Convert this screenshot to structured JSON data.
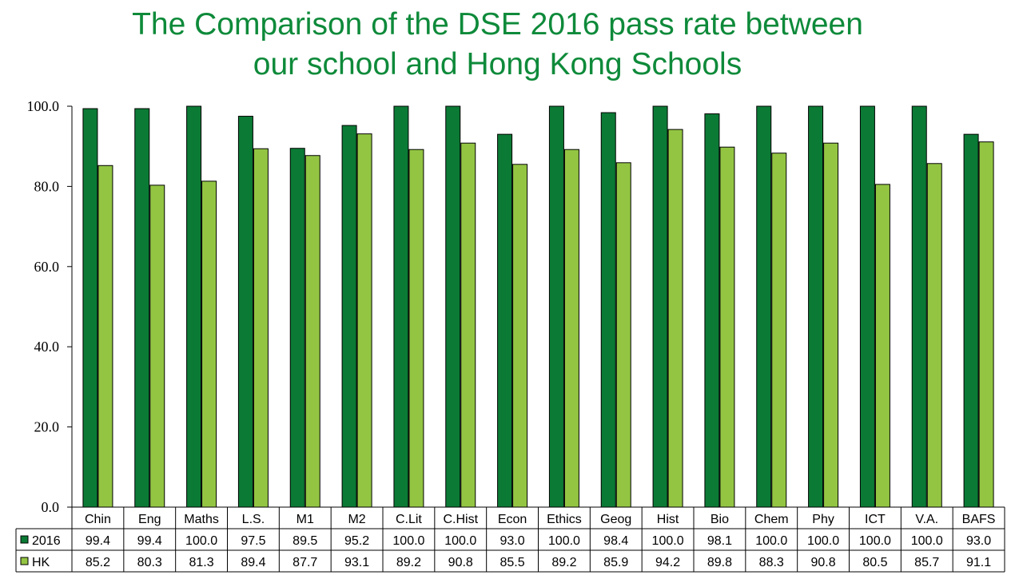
{
  "chart_data": {
    "type": "bar",
    "title_line1": "The Comparison of the DSE 2016 pass rate between",
    "title_line2": "our school and Hong Kong Schools",
    "categories": [
      "Chin",
      "Eng",
      "Maths",
      "L.S.",
      "M1",
      "M2",
      "C.Lit",
      "C.Hist",
      "Econ",
      "Ethics",
      "Geog",
      "Hist",
      "Bio",
      "Chem",
      "Phy",
      "ICT",
      "V.A.",
      "BAFS"
    ],
    "series": [
      {
        "name": "2016",
        "color": "#0b7a35",
        "values": [
          99.4,
          99.4,
          100.0,
          97.5,
          89.5,
          95.2,
          100.0,
          100.0,
          93.0,
          100.0,
          98.4,
          100.0,
          98.1,
          100.0,
          100.0,
          100.0,
          100.0,
          93.0
        ]
      },
      {
        "name": "HK",
        "color": "#93c543",
        "values": [
          85.2,
          80.3,
          81.3,
          89.4,
          87.7,
          93.1,
          89.2,
          90.8,
          85.5,
          89.2,
          85.9,
          94.2,
          89.8,
          88.3,
          90.8,
          80.5,
          85.7,
          91.1
        ]
      }
    ],
    "yticks": [
      "0.0",
      "20.0",
      "40.0",
      "60.0",
      "80.0",
      "100.0"
    ],
    "ylim": [
      0,
      100
    ],
    "grid": false,
    "legend": "data-table"
  }
}
